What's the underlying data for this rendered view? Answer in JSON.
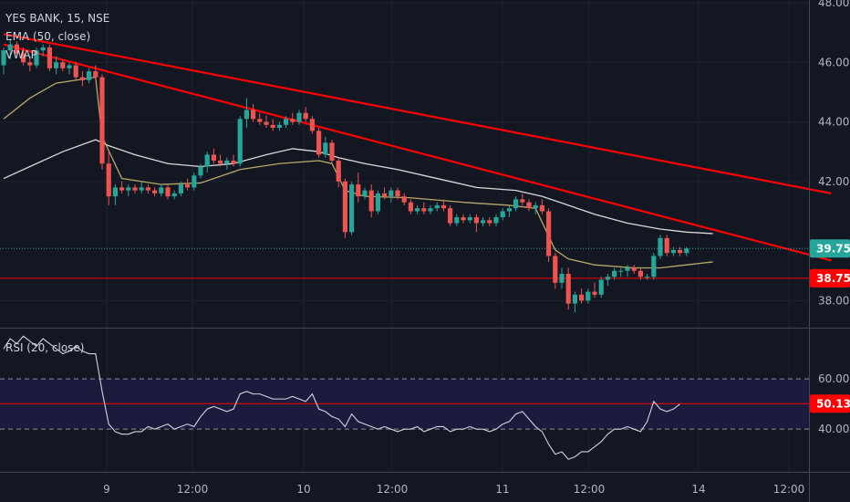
{
  "chart_data": {
    "type": "candlestick",
    "legend": {
      "title": "YES BANK, 15, NSE",
      "ema": "EMA (50, close)",
      "vwap": "VWAP"
    },
    "price_axis": {
      "range": [
        37.0,
        48.0
      ],
      "ticks": [
        "38.00",
        "42.00",
        "44.00",
        "46.00",
        "48.00"
      ]
    },
    "price_tags": [
      {
        "value": "39.75",
        "price": 39.75,
        "color": "#26a69a",
        "line": "dotted"
      },
      {
        "value": "38.75",
        "price": 38.75,
        "color": "#ff0000",
        "line": "solid"
      }
    ],
    "time_axis": {
      "ticks": [
        "9",
        "12:00",
        "10",
        "12:00",
        "11",
        "12:00",
        "14",
        "12:00"
      ]
    },
    "trendlines": [
      {
        "name": "upper-trendline",
        "from": [
          0,
          46.95
        ],
        "to": [
          126,
          41.6
        ],
        "color": "#ff0000"
      },
      {
        "name": "lower-trendline",
        "from": [
          0,
          46.6
        ],
        "to": [
          126,
          39.35
        ],
        "color": "#ff0000"
      }
    ],
    "horizontal_lines": [
      {
        "price": 38.75,
        "color": "#ff0000"
      }
    ],
    "candles": [
      [
        45.9,
        46.5,
        45.6,
        46.4
      ],
      [
        46.4,
        46.8,
        46.1,
        46.6
      ],
      [
        46.6,
        46.7,
        46.2,
        46.3
      ],
      [
        46.3,
        46.5,
        45.9,
        46.0
      ],
      [
        46.0,
        46.2,
        45.7,
        45.9
      ],
      [
        45.9,
        46.5,
        45.8,
        46.4
      ],
      [
        46.4,
        46.6,
        46.2,
        46.5
      ],
      [
        46.5,
        46.6,
        45.7,
        45.8
      ],
      [
        45.8,
        46.2,
        45.6,
        46.0
      ],
      [
        46.0,
        46.1,
        45.7,
        45.8
      ],
      [
        45.8,
        46.0,
        45.6,
        45.9
      ],
      [
        45.9,
        46.0,
        45.4,
        45.5
      ],
      [
        45.5,
        45.7,
        45.2,
        45.4
      ],
      [
        45.4,
        45.8,
        45.3,
        45.7
      ],
      [
        45.7,
        45.9,
        45.4,
        45.5
      ],
      [
        45.5,
        45.6,
        42.4,
        42.6
      ],
      [
        42.6,
        43.0,
        41.2,
        41.5
      ],
      [
        41.5,
        41.9,
        41.2,
        41.8
      ],
      [
        41.8,
        42.0,
        41.6,
        41.7
      ],
      [
        41.7,
        41.9,
        41.5,
        41.8
      ],
      [
        41.8,
        41.9,
        41.6,
        41.7
      ],
      [
        41.7,
        42.0,
        41.6,
        41.8
      ],
      [
        41.8,
        41.9,
        41.6,
        41.7
      ],
      [
        41.7,
        41.8,
        41.5,
        41.6
      ],
      [
        41.6,
        41.9,
        41.5,
        41.8
      ],
      [
        41.8,
        41.9,
        41.4,
        41.5
      ],
      [
        41.5,
        41.7,
        41.4,
        41.6
      ],
      [
        41.6,
        42.0,
        41.5,
        41.9
      ],
      [
        41.9,
        42.1,
        41.7,
        41.8
      ],
      [
        41.8,
        42.3,
        41.7,
        42.2
      ],
      [
        42.2,
        42.6,
        42.1,
        42.5
      ],
      [
        42.5,
        43.0,
        42.3,
        42.9
      ],
      [
        42.9,
        43.1,
        42.6,
        42.7
      ],
      [
        42.7,
        42.9,
        42.5,
        42.6
      ],
      [
        42.6,
        42.8,
        42.4,
        42.7
      ],
      [
        42.7,
        42.9,
        42.5,
        42.6
      ],
      [
        42.6,
        44.2,
        42.5,
        44.1
      ],
      [
        44.1,
        44.8,
        43.8,
        44.4
      ],
      [
        44.4,
        44.6,
        44.0,
        44.1
      ],
      [
        44.1,
        44.3,
        43.9,
        44.0
      ],
      [
        44.0,
        44.2,
        43.8,
        43.9
      ],
      [
        43.9,
        44.1,
        43.7,
        43.8
      ],
      [
        43.8,
        44.0,
        43.7,
        43.9
      ],
      [
        43.9,
        44.2,
        43.8,
        44.1
      ],
      [
        44.1,
        44.3,
        43.9,
        44.0
      ],
      [
        44.0,
        44.4,
        43.9,
        44.3
      ],
      [
        44.3,
        44.5,
        44.0,
        44.1
      ],
      [
        44.1,
        44.2,
        43.6,
        43.7
      ],
      [
        43.7,
        43.8,
        42.8,
        42.9
      ],
      [
        42.9,
        43.5,
        42.8,
        43.3
      ],
      [
        43.3,
        43.4,
        42.6,
        42.7
      ],
      [
        42.7,
        42.8,
        41.8,
        42.0
      ],
      [
        42.0,
        42.1,
        40.1,
        40.3
      ],
      [
        40.3,
        42.0,
        40.2,
        41.9
      ],
      [
        41.9,
        42.3,
        41.3,
        41.5
      ],
      [
        41.5,
        41.8,
        41.4,
        41.7
      ],
      [
        41.7,
        41.9,
        40.8,
        41.0
      ],
      [
        41.0,
        41.7,
        40.9,
        41.6
      ],
      [
        41.6,
        41.8,
        41.4,
        41.5
      ],
      [
        41.5,
        41.8,
        41.3,
        41.7
      ],
      [
        41.7,
        41.8,
        41.4,
        41.5
      ],
      [
        41.5,
        41.6,
        41.2,
        41.3
      ],
      [
        41.3,
        41.4,
        40.9,
        41.0
      ],
      [
        41.0,
        41.2,
        40.9,
        41.1
      ],
      [
        41.1,
        41.3,
        40.9,
        41.0
      ],
      [
        41.0,
        41.2,
        40.9,
        41.1
      ],
      [
        41.1,
        41.3,
        41.0,
        41.2
      ],
      [
        41.2,
        41.4,
        41.0,
        41.1
      ],
      [
        41.1,
        41.2,
        40.5,
        40.6
      ],
      [
        40.6,
        40.9,
        40.5,
        40.8
      ],
      [
        40.8,
        40.9,
        40.6,
        40.7
      ],
      [
        40.7,
        40.9,
        40.6,
        40.8
      ],
      [
        40.8,
        40.9,
        40.3,
        40.6
      ],
      [
        40.6,
        40.8,
        40.5,
        40.7
      ],
      [
        40.7,
        40.8,
        40.5,
        40.6
      ],
      [
        40.6,
        40.9,
        40.5,
        40.8
      ],
      [
        40.8,
        41.1,
        40.7,
        41.0
      ],
      [
        41.0,
        41.2,
        40.8,
        41.1
      ],
      [
        41.1,
        41.5,
        41.0,
        41.4
      ],
      [
        41.4,
        41.6,
        41.2,
        41.3
      ],
      [
        41.3,
        41.4,
        41.0,
        41.1
      ],
      [
        41.1,
        41.3,
        40.9,
        41.2
      ],
      [
        41.2,
        41.4,
        40.9,
        41.0
      ],
      [
        41.0,
        41.1,
        39.3,
        39.5
      ],
      [
        39.5,
        39.6,
        38.4,
        38.6
      ],
      [
        38.6,
        39.1,
        38.4,
        38.9
      ],
      [
        38.9,
        39.1,
        37.7,
        37.9
      ],
      [
        37.9,
        38.3,
        37.6,
        38.2
      ],
      [
        38.2,
        38.4,
        37.9,
        38.0
      ],
      [
        38.0,
        38.4,
        37.9,
        38.3
      ],
      [
        38.3,
        38.6,
        38.1,
        38.2
      ],
      [
        38.2,
        38.8,
        38.1,
        38.7
      ],
      [
        38.7,
        38.9,
        38.5,
        38.8
      ],
      [
        38.8,
        39.1,
        38.7,
        39.0
      ],
      [
        39.0,
        39.1,
        38.8,
        39.0
      ],
      [
        39.0,
        39.2,
        38.8,
        39.1
      ],
      [
        39.1,
        39.2,
        38.9,
        39.0
      ],
      [
        39.0,
        39.1,
        38.7,
        38.8
      ],
      [
        38.8,
        38.9,
        38.7,
        38.8
      ],
      [
        38.8,
        39.6,
        38.7,
        39.5
      ],
      [
        39.5,
        40.2,
        39.4,
        40.1
      ],
      [
        40.1,
        40.2,
        39.5,
        39.6
      ],
      [
        39.6,
        39.8,
        39.5,
        39.7
      ],
      [
        39.7,
        39.8,
        39.5,
        39.6
      ],
      [
        39.6,
        39.8,
        39.5,
        39.75
      ]
    ],
    "ema": [
      [
        0,
        42.1
      ],
      [
        4,
        42.5
      ],
      [
        9,
        43.0
      ],
      [
        14,
        43.4
      ],
      [
        16,
        43.2
      ],
      [
        20,
        42.9
      ],
      [
        25,
        42.6
      ],
      [
        30,
        42.5
      ],
      [
        35,
        42.6
      ],
      [
        40,
        42.9
      ],
      [
        44,
        43.1
      ],
      [
        48,
        43.0
      ],
      [
        51,
        42.8
      ],
      [
        55,
        42.6
      ],
      [
        60,
        42.4
      ],
      [
        66,
        42.1
      ],
      [
        72,
        41.8
      ],
      [
        78,
        41.7
      ],
      [
        82,
        41.5
      ],
      [
        86,
        41.2
      ],
      [
        90,
        40.9
      ],
      [
        95,
        40.6
      ],
      [
        100,
        40.4
      ],
      [
        104,
        40.3
      ],
      [
        108,
        40.25
      ]
    ],
    "vwap": [
      [
        0,
        44.1
      ],
      [
        4,
        44.8
      ],
      [
        8,
        45.3
      ],
      [
        14,
        45.5
      ],
      [
        15,
        43.5
      ],
      [
        18,
        42.1
      ],
      [
        24,
        41.9
      ],
      [
        30,
        41.95
      ],
      [
        36,
        42.4
      ],
      [
        42,
        42.6
      ],
      [
        48,
        42.7
      ],
      [
        50,
        42.6
      ],
      [
        52,
        41.7
      ],
      [
        55,
        41.5
      ],
      [
        62,
        41.45
      ],
      [
        70,
        41.3
      ],
      [
        77,
        41.2
      ],
      [
        81,
        41.1
      ],
      [
        84,
        39.7
      ],
      [
        86,
        39.4
      ],
      [
        90,
        39.2
      ],
      [
        96,
        39.1
      ],
      [
        100,
        39.1
      ],
      [
        104,
        39.2
      ],
      [
        108,
        39.3
      ]
    ],
    "rsi": {
      "label": "RSI (20, close)",
      "range": [
        23,
        80
      ],
      "levels": {
        "upper": 60,
        "lower": 40,
        "line": 50.13
      },
      "ticks": [
        "40.00",
        "60.00"
      ],
      "tag": {
        "value": "50.13",
        "color": "#ff0000"
      },
      "values": [
        72,
        76,
        74,
        77,
        75,
        73,
        76,
        74,
        72,
        70,
        71,
        73,
        71,
        70,
        70,
        55,
        42,
        39,
        38,
        38,
        39,
        39,
        41,
        40,
        41,
        42,
        40,
        41,
        42,
        41,
        45,
        48,
        49,
        48,
        47,
        48,
        54,
        55,
        54,
        54,
        53,
        52,
        52,
        52,
        53,
        52,
        51,
        54,
        48,
        47,
        45,
        44,
        41,
        46,
        43,
        42,
        41,
        40,
        41,
        40,
        39,
        40,
        40,
        41,
        39,
        40,
        41,
        41,
        39,
        40,
        40,
        41,
        40,
        40,
        39,
        40,
        42,
        43,
        46,
        47,
        44,
        41,
        39,
        34,
        30,
        31,
        28,
        29,
        31,
        31,
        33,
        35,
        38,
        40,
        40,
        41,
        40,
        39,
        43,
        51,
        48,
        47,
        48,
        50
      ]
    }
  }
}
